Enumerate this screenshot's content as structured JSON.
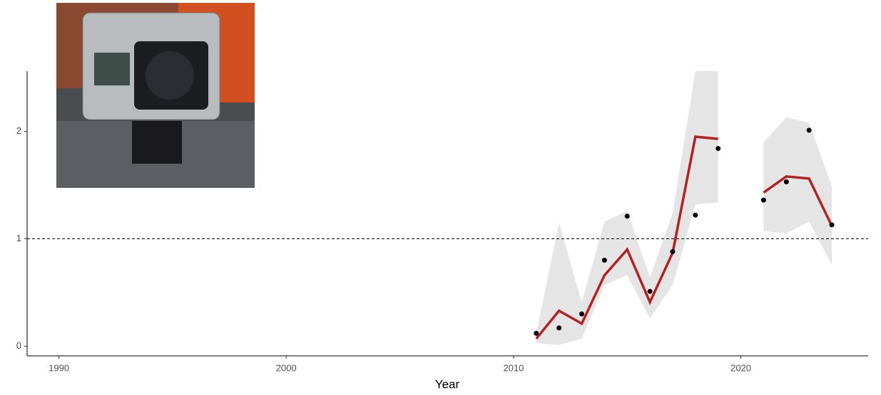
{
  "chart_data": {
    "type": "line",
    "x_label": "Year",
    "x": [
      2011,
      2012,
      2013,
      2014,
      2015,
      2016,
      2017,
      2018,
      2019,
      2020,
      2021,
      2022,
      2023,
      2024
    ],
    "series": [
      {
        "color": "#b22222",
        "values": [
          0.07,
          0.33,
          0.21,
          0.66,
          0.9,
          0.41,
          0.87,
          1.95,
          1.93,
          null,
          1.43,
          1.58,
          1.56,
          1.12
        ]
      }
    ],
    "ribbon": {
      "color": "#e5e5e5",
      "lower": [
        0.03,
        0.01,
        0.07,
        0.57,
        0.66,
        0.26,
        0.57,
        1.32,
        1.34,
        null,
        1.07,
        1.05,
        1.16,
        0.76
      ],
      "upper": [
        0.12,
        1.15,
        0.41,
        1.16,
        1.26,
        0.64,
        1.24,
        2.56,
        2.56,
        null,
        1.9,
        2.13,
        2.08,
        1.49
      ]
    },
    "points": {
      "color": "#000000",
      "x": [
        2011,
        2012,
        2013,
        2014,
        2015,
        2016,
        2017,
        2018,
        2019,
        2021,
        2022,
        2023,
        2024
      ],
      "values": [
        0.12,
        0.17,
        0.3,
        0.8,
        1.21,
        0.51,
        0.88,
        1.22,
        1.84,
        1.36,
        1.53,
        2.01,
        1.13
      ]
    },
    "hline": 1,
    "xlim": [
      1988.6,
      2025.6
    ],
    "ylim": [
      -0.09,
      2.56
    ],
    "xticks": [
      1990,
      2000,
      2010,
      2020
    ],
    "yticks": [
      0,
      1,
      2
    ]
  }
}
